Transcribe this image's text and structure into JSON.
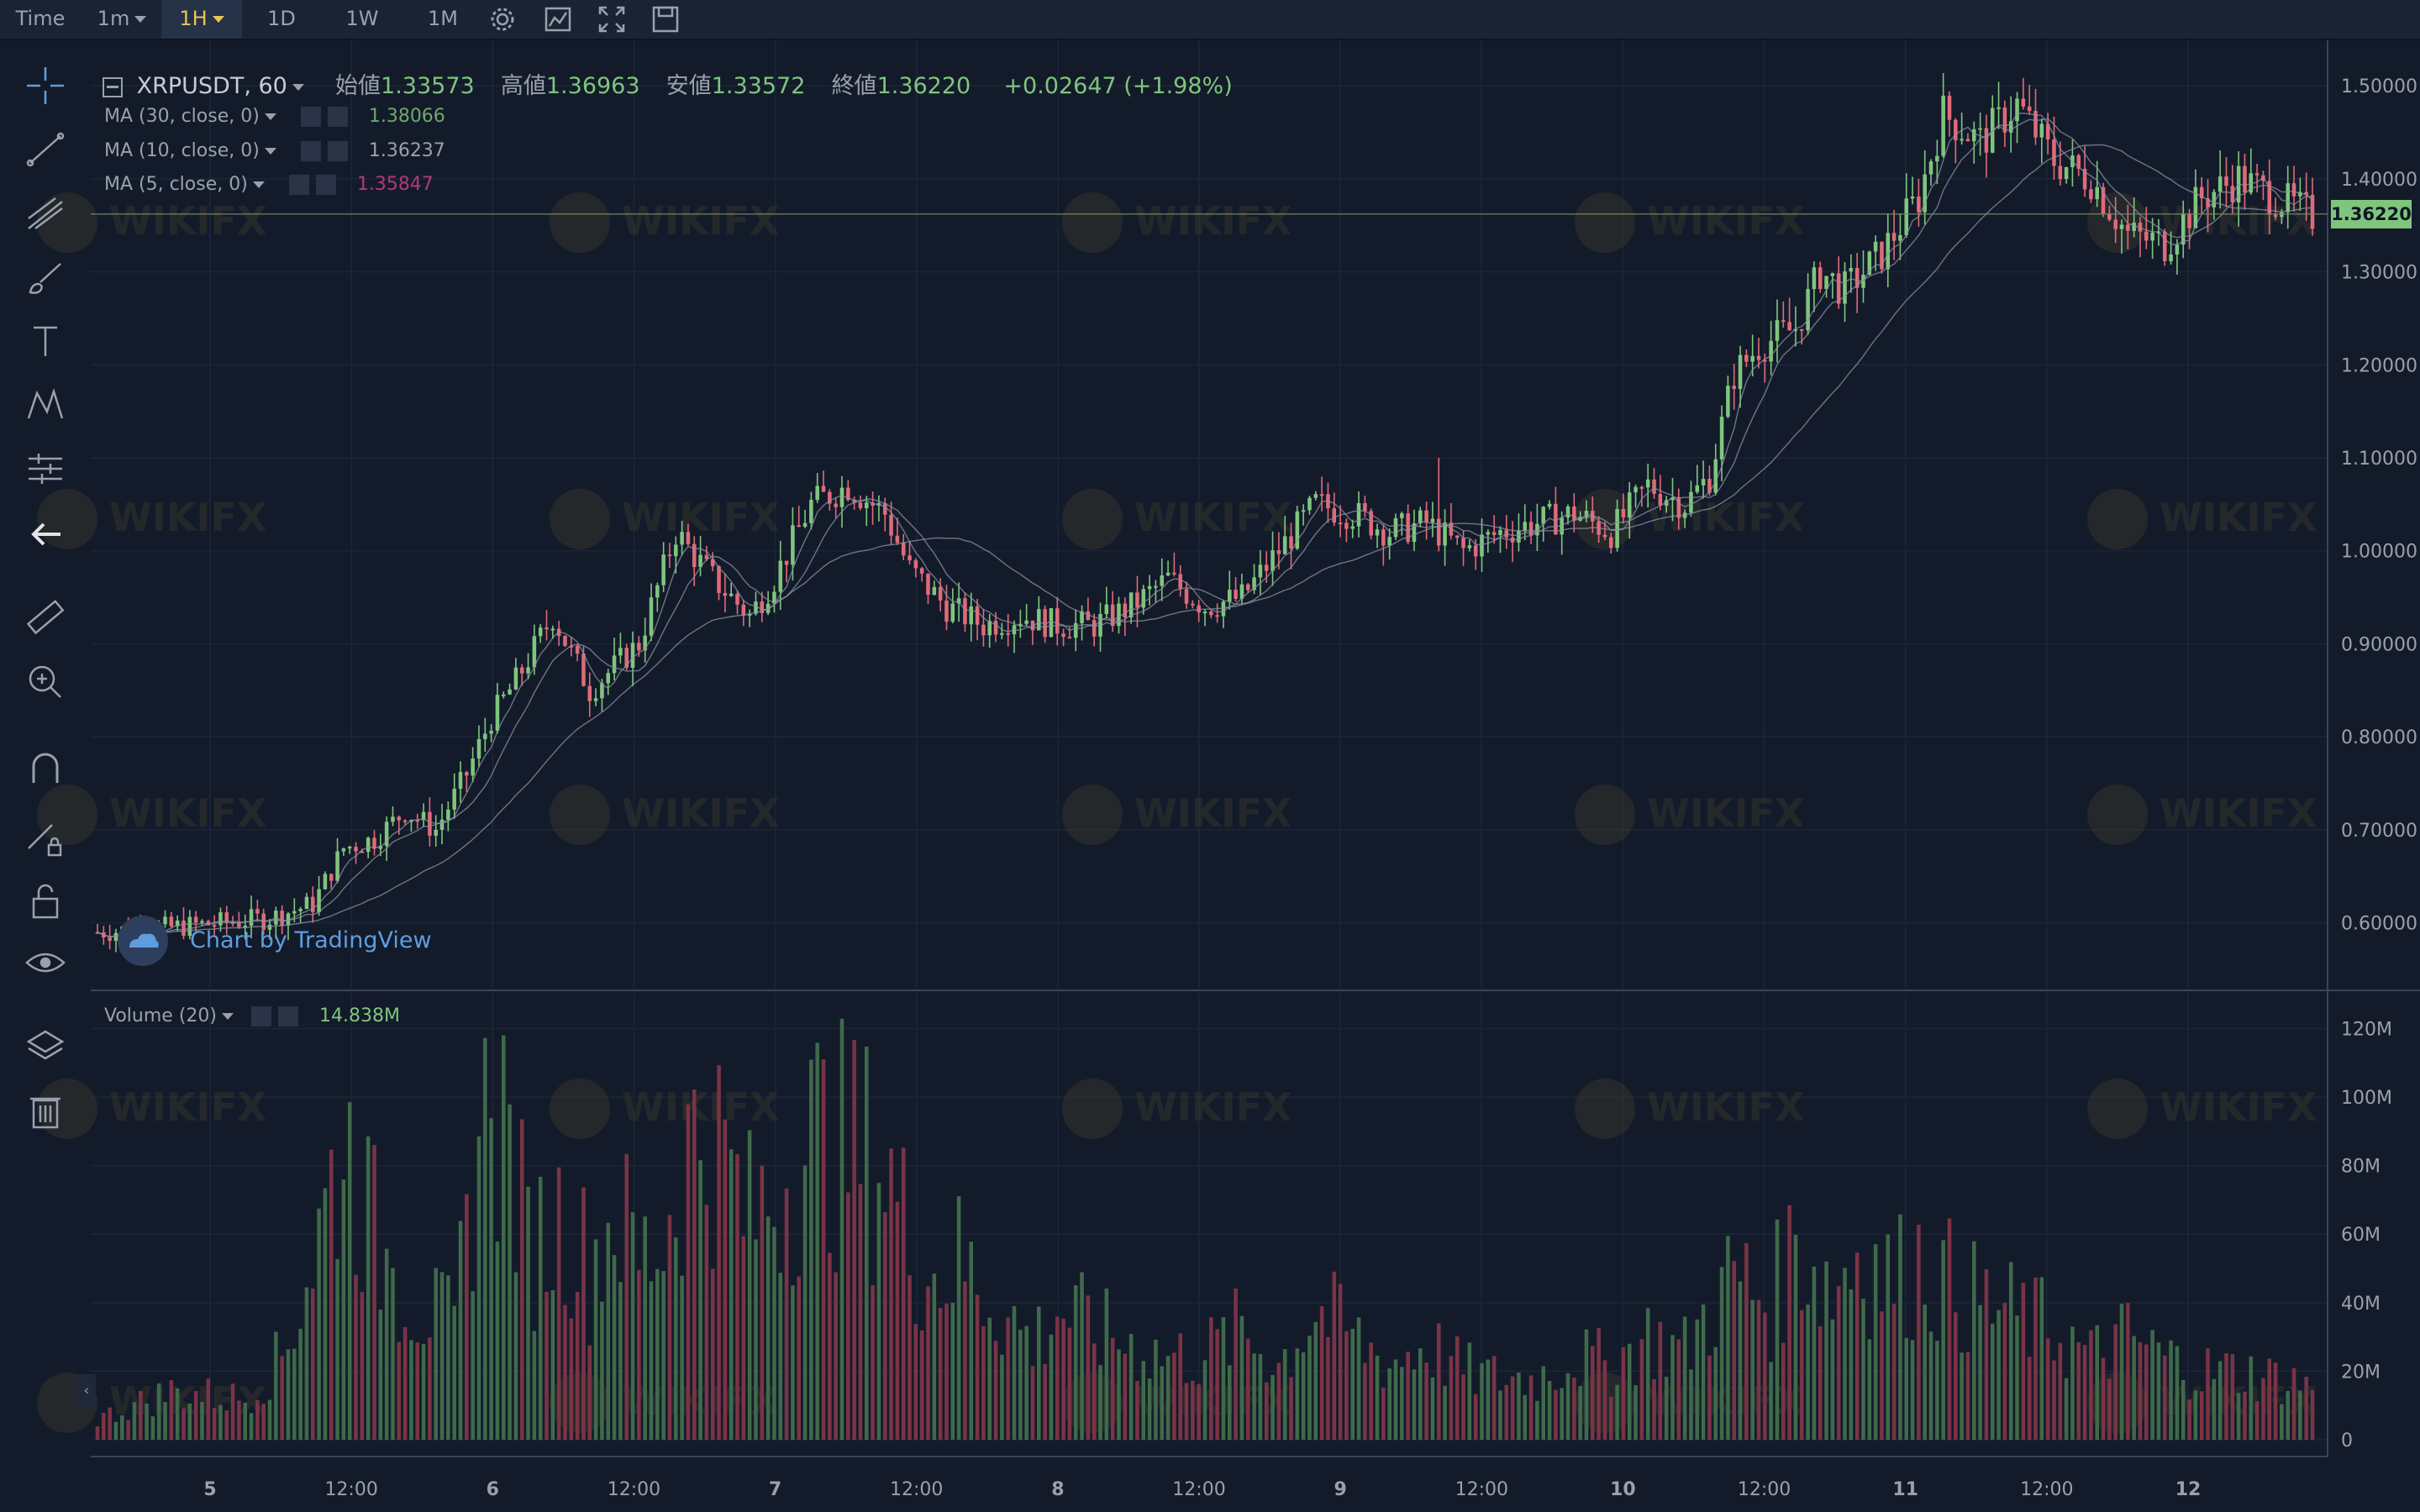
{
  "toolbar": {
    "time_label": "Time",
    "intervals": [
      {
        "label": "1m",
        "has_menu": true,
        "active": false
      },
      {
        "label": "1H",
        "has_menu": true,
        "active": true
      },
      {
        "label": "1D",
        "has_menu": false,
        "active": false
      },
      {
        "label": "1W",
        "has_menu": false,
        "active": false
      },
      {
        "label": "1M",
        "has_menu": false,
        "active": false
      }
    ],
    "icons": [
      "gear-icon",
      "indicators-icon",
      "fullscreen-icon",
      "save-icon"
    ]
  },
  "left_tools": [
    "crosshair-icon",
    "trend-line-icon",
    "pitchfork-icon",
    "brush-icon",
    "text-icon",
    "pattern-icon",
    "prediction-icon",
    "back-arrow-icon",
    "ruler-icon",
    "zoom-in-icon",
    "magnet-icon",
    "lock-drawing-icon",
    "unlock-icon",
    "eye-icon",
    "layers-icon",
    "trash-icon"
  ],
  "legend": {
    "symbol": "XRPUSDT, 60",
    "open_label": "始値",
    "open": "1.33573",
    "high_label": "高値",
    "high": "1.36963",
    "low_label": "安値",
    "low": "1.33572",
    "close_label": "終値",
    "close": "1.36220",
    "change": "+0.02647 (+1.98%)"
  },
  "ma_lines": [
    {
      "label": "MA (30, close, 0)",
      "value": "1.38066",
      "color": "#6ea869"
    },
    {
      "label": "MA (10, close, 0)",
      "value": "1.36237",
      "color": "#9aa1ad"
    },
    {
      "label": "MA (5, close, 0)",
      "value": "1.35847",
      "color": "#b3397a"
    }
  ],
  "volume_legend": {
    "label": "Volume (20)",
    "value": "14.838M"
  },
  "current_price": "1.36220",
  "tv_logo_text": "Chart by TradingView",
  "watermark_text": "WIKIFX",
  "colors": {
    "up": "#7fc57d",
    "down": "#e06a78",
    "vol_up": "#3f6a4a",
    "vol_down": "#7a3445",
    "background": "#131b2b"
  },
  "chart_data": {
    "type": "candlestick",
    "symbol": "XRPUSDT",
    "interval": "60",
    "price_axis": {
      "ticks": [
        "1.50000",
        "1.40000",
        "1.30000",
        "1.20000",
        "1.10000",
        "1.00000",
        "0.90000",
        "0.80000",
        "0.70000",
        "0.60000"
      ],
      "range": [
        0.53,
        1.52
      ]
    },
    "volume_axis": {
      "ticks": [
        "120M",
        "100M",
        "80M",
        "60M",
        "40M",
        "20M",
        "0"
      ],
      "range": [
        0,
        126
      ]
    },
    "time_axis": [
      {
        "label": "5",
        "bold": true
      },
      {
        "label": "12:00",
        "bold": false
      },
      {
        "label": "6",
        "bold": true
      },
      {
        "label": "12:00",
        "bold": false
      },
      {
        "label": "7",
        "bold": true
      },
      {
        "label": "12:00",
        "bold": false
      },
      {
        "label": "8",
        "bold": true
      },
      {
        "label": "12:00",
        "bold": false
      },
      {
        "label": "9",
        "bold": true
      },
      {
        "label": "12:00",
        "bold": false
      },
      {
        "label": "10",
        "bold": true
      },
      {
        "label": "12:00",
        "bold": false
      },
      {
        "label": "11",
        "bold": true
      },
      {
        "label": "12:00",
        "bold": false
      },
      {
        "label": "12",
        "bold": true
      }
    ],
    "anchors": [
      [
        0,
        0.59
      ],
      [
        12,
        0.595
      ],
      [
        20,
        0.6
      ],
      [
        28,
        0.605
      ],
      [
        35,
        0.62
      ],
      [
        40,
        0.68
      ],
      [
        45,
        0.69
      ],
      [
        50,
        0.72
      ],
      [
        55,
        0.7
      ],
      [
        60,
        0.76
      ],
      [
        64,
        0.82
      ],
      [
        68,
        0.86
      ],
      [
        74,
        0.93
      ],
      [
        80,
        0.85
      ],
      [
        88,
        0.9
      ],
      [
        94,
        1.02
      ],
      [
        100,
        0.97
      ],
      [
        106,
        0.93
      ],
      [
        110,
        0.97
      ],
      [
        116,
        1.05
      ],
      [
        122,
        1.07
      ],
      [
        128,
        1.04
      ],
      [
        132,
        0.98
      ],
      [
        138,
        0.94
      ],
      [
        144,
        0.92
      ],
      [
        150,
        0.93
      ],
      [
        156,
        0.92
      ],
      [
        162,
        0.92
      ],
      [
        168,
        0.94
      ],
      [
        174,
        0.97
      ],
      [
        180,
        0.94
      ],
      [
        186,
        0.95
      ],
      [
        192,
        1.0
      ],
      [
        198,
        1.05
      ],
      [
        204,
        1.04
      ],
      [
        210,
        1.02
      ],
      [
        216,
        1.03
      ],
      [
        222,
        1.0
      ],
      [
        228,
        1.02
      ],
      [
        234,
        1.03
      ],
      [
        240,
        1.04
      ],
      [
        246,
        1.02
      ],
      [
        252,
        1.07
      ],
      [
        258,
        1.05
      ],
      [
        262,
        1.08
      ],
      [
        266,
        1.19
      ],
      [
        270,
        1.22
      ],
      [
        276,
        1.24
      ],
      [
        280,
        1.3
      ],
      [
        284,
        1.28
      ],
      [
        290,
        1.32
      ],
      [
        296,
        1.38
      ],
      [
        300,
        1.47
      ],
      [
        306,
        1.44
      ],
      [
        312,
        1.48
      ],
      [
        318,
        1.42
      ],
      [
        324,
        1.4
      ],
      [
        330,
        1.34
      ],
      [
        336,
        1.33
      ],
      [
        342,
        1.38
      ],
      [
        348,
        1.4
      ],
      [
        354,
        1.38
      ],
      [
        360,
        1.36
      ]
    ],
    "volume_anchors": [
      [
        0,
        6
      ],
      [
        12,
        14
      ],
      [
        24,
        12
      ],
      [
        30,
        24
      ],
      [
        36,
        60
      ],
      [
        40,
        88
      ],
      [
        46,
        55
      ],
      [
        52,
        40
      ],
      [
        58,
        32
      ],
      [
        62,
        90
      ],
      [
        66,
        95
      ],
      [
        70,
        56
      ],
      [
        76,
        65
      ],
      [
        80,
        50
      ],
      [
        84,
        68
      ],
      [
        88,
        52
      ],
      [
        92,
        60
      ],
      [
        96,
        85
      ],
      [
        100,
        88
      ],
      [
        106,
        64
      ],
      [
        110,
        72
      ],
      [
        116,
        88
      ],
      [
        122,
        85
      ],
      [
        128,
        80
      ],
      [
        132,
        58
      ],
      [
        136,
        48
      ],
      [
        140,
        52
      ],
      [
        146,
        40
      ],
      [
        152,
        28
      ],
      [
        156,
        38
      ],
      [
        162,
        32
      ],
      [
        168,
        28
      ],
      [
        174,
        24
      ],
      [
        180,
        25
      ],
      [
        186,
        32
      ],
      [
        192,
        22
      ],
      [
        198,
        38
      ],
      [
        204,
        30
      ],
      [
        210,
        22
      ],
      [
        216,
        28
      ],
      [
        222,
        20
      ],
      [
        228,
        18
      ],
      [
        234,
        18
      ],
      [
        240,
        24
      ],
      [
        246,
        22
      ],
      [
        252,
        30
      ],
      [
        258,
        26
      ],
      [
        262,
        38
      ],
      [
        266,
        48
      ],
      [
        272,
        40
      ],
      [
        276,
        58
      ],
      [
        282,
        44
      ],
      [
        286,
        56
      ],
      [
        292,
        46
      ],
      [
        296,
        52
      ],
      [
        302,
        44
      ],
      [
        306,
        40
      ],
      [
        312,
        36
      ],
      [
        318,
        32
      ],
      [
        324,
        24
      ],
      [
        330,
        30
      ],
      [
        336,
        24
      ],
      [
        342,
        20
      ],
      [
        348,
        20
      ],
      [
        354,
        18
      ],
      [
        360,
        16
      ]
    ],
    "candle_count": 361,
    "ma_periods": [
      30,
      10,
      5
    ]
  }
}
